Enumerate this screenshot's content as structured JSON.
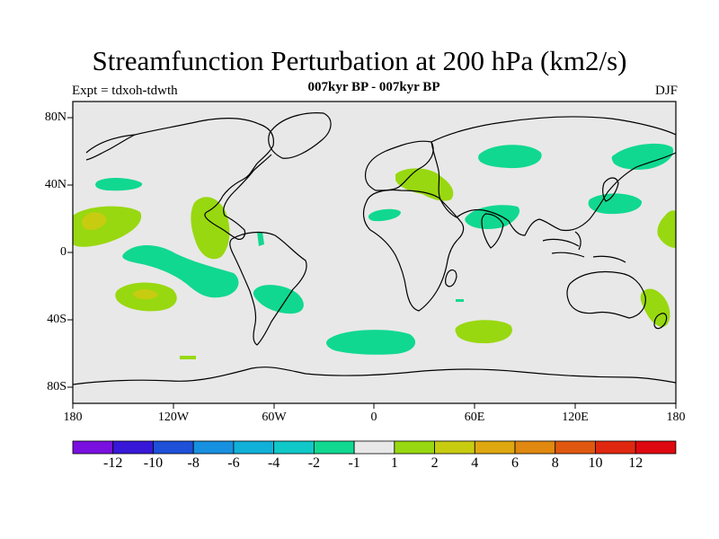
{
  "header": {
    "title": "Streamfunction Perturbation at 200 hPa (km2/s)",
    "subtitle": "007kyr BP - 007kyr BP",
    "left_label": "Expt = tdxoh-tdwth",
    "right_label": "DJF"
  },
  "axes": {
    "lat_labels": [
      "80N",
      "40N",
      "0",
      "40S",
      "80S"
    ],
    "lon_labels": [
      "180",
      "120W",
      "60W",
      "0",
      "60E",
      "120E",
      "180"
    ]
  },
  "colorbar": {
    "labels": [
      "-12",
      "-10",
      "-8",
      "-6",
      "-4",
      "-2",
      "-1",
      "1",
      "2",
      "4",
      "6",
      "8",
      "10",
      "12"
    ],
    "colors": [
      "#7a10e0",
      "#3818d8",
      "#1e50d8",
      "#1890e0",
      "#10b0d8",
      "#10c8c8",
      "#10d890",
      "#e8e8e8",
      "#98d810",
      "#c8cc10",
      "#e0a810",
      "#e08810",
      "#e05810",
      "#e02810",
      "#e00810"
    ]
  },
  "map_colors": {
    "background": "#e8e8e8",
    "neg_1_2": "#10d890",
    "pos_1_2": "#98d810",
    "pos_2_4": "#c8cc10",
    "pos_4_6": "#e0a810"
  }
}
